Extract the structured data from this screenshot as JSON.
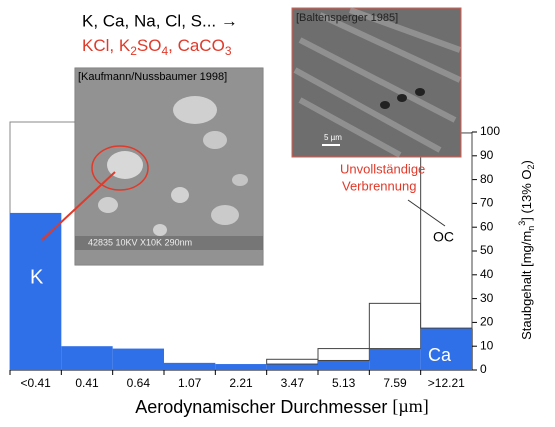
{
  "chart_data": {
    "type": "stacked-bar",
    "categories": [
      "<0.41",
      "0.41",
      "0.64",
      "1.07",
      "2.21",
      "3.47",
      "5.13",
      "7.59",
      ">12.21"
    ],
    "series": [
      {
        "color": "#2f6fe8",
        "values": [
          66,
          10,
          9,
          3,
          2.5,
          2.5,
          4,
          9,
          17.6
        ]
      },
      {
        "color": "#ffffff",
        "values": [
          0,
          0,
          0,
          0,
          0,
          2,
          5,
          19,
          82
        ]
      }
    ],
    "ylim": [
      0,
      100
    ],
    "yticks": [
      0,
      10,
      20,
      30,
      40,
      50,
      60,
      70,
      80,
      90,
      100
    ],
    "y_label": [
      "Staubgehalt   [mg/m",
      "n",
      "3",
      "] (13% O",
      "2",
      ")"
    ],
    "x_label": [
      "Aerodynamischer Durchmesser ",
      "[",
      "µm",
      "]"
    ],
    "annotations": {
      "elements": "K, Ca, Na, Cl, S... →",
      "compounds": [
        "KCl, K",
        "2",
        "SO",
        "4",
        ", CaCO",
        "3"
      ],
      "source_left": "[Kaufmann/Nussbaumer 1998]",
      "source_right": "[Baltensperger 1985]",
      "incomplete": [
        "Unvollständige",
        "Verbrennung"
      ],
      "oc": "OC",
      "k": "K",
      "ca": "Ca",
      "scale_bar": "5 µm",
      "sem_info": "42835 10KV X10K 290nm"
    }
  }
}
